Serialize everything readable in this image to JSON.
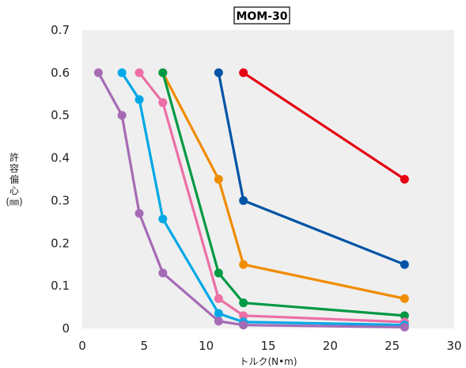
{
  "chart_data": {
    "type": "line",
    "title": "MOM-30",
    "xlabel": "トルク(N•m)",
    "ylabel": "許容偏心(㎜)",
    "xlim": [
      0,
      30
    ],
    "ylim": [
      0,
      0.7
    ],
    "xticks": [
      "0",
      "5",
      "10",
      "15",
      "20",
      "25",
      "30"
    ],
    "yticks": [
      "0",
      "0.1",
      "0.2",
      "0.3",
      "0.4",
      "0.5",
      "0.6",
      "0.7"
    ],
    "grid": false,
    "series": [
      {
        "color": "#e60012",
        "points": [
          [
            13,
            0.6
          ],
          [
            26,
            0.35
          ]
        ]
      },
      {
        "color": "#0054a6",
        "points": [
          [
            11,
            0.6
          ],
          [
            13,
            0.3
          ],
          [
            26,
            0.15
          ]
        ]
      },
      {
        "color": "#f08c00",
        "points": [
          [
            6.5,
            0.6
          ],
          [
            11,
            0.35
          ],
          [
            13,
            0.15
          ],
          [
            26,
            0.07
          ]
        ]
      },
      {
        "color": "#009944",
        "points": [
          [
            6.5,
            0.6
          ],
          [
            11,
            0.13
          ],
          [
            13,
            0.06
          ],
          [
            26,
            0.03
          ]
        ]
      },
      {
        "color": "#ec6fa6",
        "points": [
          [
            4.6,
            0.6
          ],
          [
            6.5,
            0.53
          ],
          [
            11,
            0.07
          ],
          [
            13,
            0.03
          ],
          [
            26,
            0.015
          ]
        ]
      },
      {
        "color": "#00a8e6",
        "points": [
          [
            3.2,
            0.6
          ],
          [
            4.6,
            0.537
          ],
          [
            6.5,
            0.257
          ],
          [
            11,
            0.035
          ],
          [
            13,
            0.015
          ],
          [
            26,
            0.008
          ]
        ]
      },
      {
        "color": "#a56bb5",
        "points": [
          [
            1.3,
            0.6
          ],
          [
            3.2,
            0.5
          ],
          [
            4.6,
            0.27
          ],
          [
            6.5,
            0.13
          ],
          [
            11,
            0.017
          ],
          [
            13,
            0.008
          ],
          [
            26,
            0.003
          ]
        ]
      }
    ]
  }
}
